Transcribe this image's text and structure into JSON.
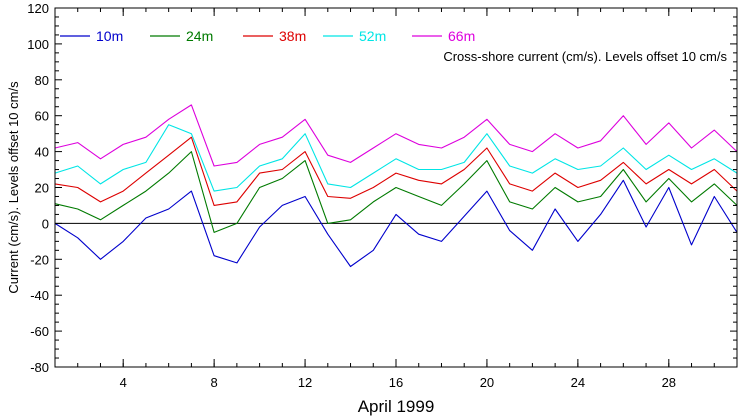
{
  "chart_data": {
    "type": "line",
    "annotation": "Cross-shore current (cm/s). Levels offset 10 cm/s",
    "xlabel": "April 1999",
    "ylabel": "Current (cm/s). Levels offset 10 cm/s",
    "xlim": [
      1,
      31
    ],
    "ylim": [
      -80,
      120
    ],
    "xticks": [
      4,
      8,
      12,
      16,
      20,
      24,
      28
    ],
    "yticks": [
      -80,
      -60,
      -40,
      -20,
      0,
      20,
      40,
      60,
      80,
      100,
      120
    ],
    "grid": false,
    "legend_position": "top-left",
    "zero_line": 0,
    "x": [
      1,
      2,
      3,
      4,
      5,
      6,
      7,
      8,
      9,
      10,
      11,
      12,
      13,
      14,
      15,
      16,
      17,
      18,
      19,
      20,
      21,
      22,
      23,
      24,
      25,
      26,
      27,
      28,
      29,
      30,
      31
    ],
    "series": [
      {
        "name": "10m",
        "color": "#0000cc",
        "offset": 0,
        "values": [
          0,
          -8,
          -20,
          -10,
          3,
          8,
          18,
          -18,
          -22,
          -2,
          10,
          15,
          -6,
          -24,
          -15,
          5,
          -6,
          -10,
          4,
          18,
          -4,
          -15,
          8,
          -10,
          5,
          24,
          -2,
          20,
          -12,
          15,
          -5
        ]
      },
      {
        "name": "24m",
        "color": "#007a00",
        "offset": 10,
        "values": [
          11,
          8,
          2,
          10,
          18,
          28,
          40,
          -5,
          0,
          20,
          25,
          35,
          0,
          2,
          12,
          20,
          15,
          10,
          22,
          35,
          12,
          8,
          20,
          12,
          15,
          30,
          12,
          25,
          12,
          22,
          10
        ]
      },
      {
        "name": "38m",
        "color": "#dd0000",
        "offset": 20,
        "values": [
          22,
          20,
          12,
          18,
          28,
          38,
          48,
          10,
          12,
          28,
          30,
          40,
          15,
          14,
          20,
          28,
          24,
          22,
          30,
          42,
          22,
          18,
          28,
          20,
          24,
          34,
          22,
          30,
          22,
          30,
          18
        ]
      },
      {
        "name": "52m",
        "color": "#00e5e5",
        "offset": 30,
        "values": [
          28,
          32,
          22,
          30,
          34,
          55,
          50,
          18,
          20,
          32,
          36,
          50,
          22,
          20,
          28,
          36,
          30,
          30,
          34,
          50,
          32,
          28,
          36,
          30,
          32,
          42,
          30,
          38,
          30,
          36,
          28
        ]
      },
      {
        "name": "66m",
        "color": "#dd00dd",
        "offset": 40,
        "values": [
          42,
          45,
          36,
          44,
          48,
          58,
          66,
          32,
          34,
          44,
          48,
          58,
          38,
          34,
          42,
          50,
          44,
          42,
          48,
          58,
          44,
          40,
          50,
          42,
          46,
          60,
          44,
          56,
          42,
          52,
          40
        ]
      }
    ]
  }
}
